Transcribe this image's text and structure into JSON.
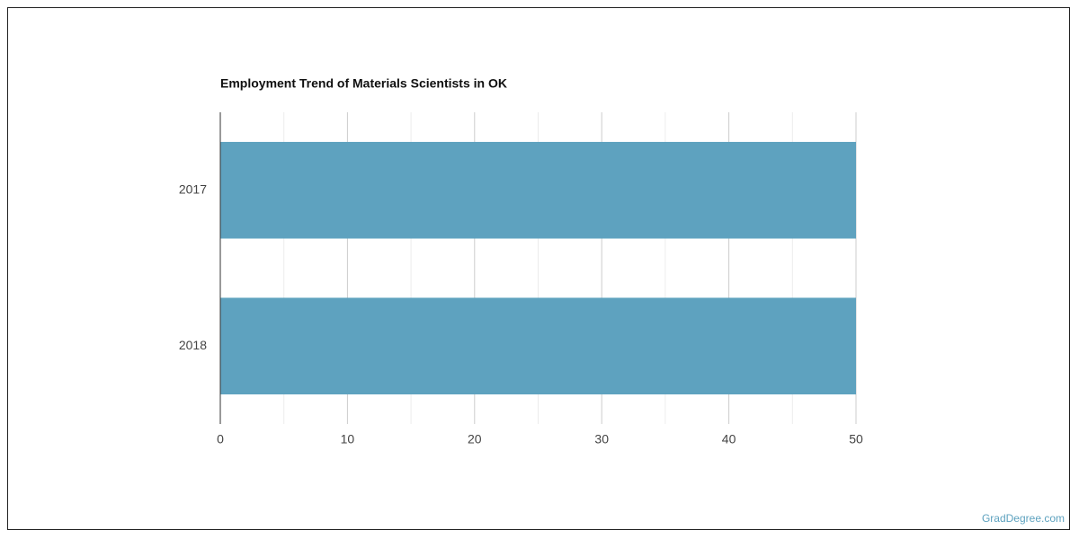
{
  "chart_data": {
    "type": "bar",
    "orientation": "horizontal",
    "title": "Employment Trend of Materials Scientists in OK",
    "categories": [
      "2017",
      "2018"
    ],
    "values": [
      50,
      50
    ],
    "color": "#5ea2bf",
    "xlim": [
      0,
      50
    ],
    "xticks": [
      0,
      10,
      20,
      30,
      40,
      50
    ],
    "minor_xticks": [
      5,
      15,
      25,
      35,
      45
    ],
    "grid": true,
    "watermark": "GradDegree.com"
  }
}
